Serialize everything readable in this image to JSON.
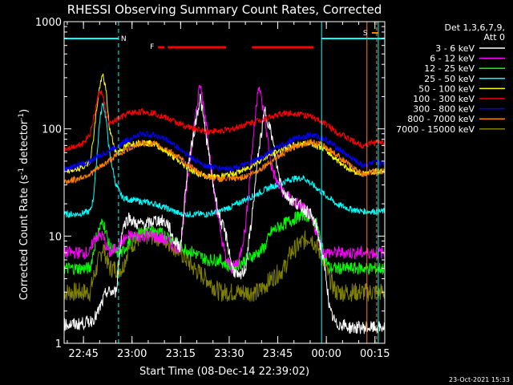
{
  "chart_data": {
    "type": "line",
    "title": "RHESSI Observing Summary Count Rates, Corrected",
    "xlabel": "Start Time (08-Dec-14 22:39:02)",
    "ylabel_main": "Corrected Count Rate (s",
    "ylabel_sup1": "-1",
    "ylabel_mid": " detector",
    "ylabel_sup2": "-1",
    "ylabel_end": ")",
    "yscale": "log",
    "ylim": [
      1,
      1000
    ],
    "xlim_minutes_after_start": [
      0,
      99
    ],
    "x_tick_labels": [
      "22:45",
      "23:00",
      "23:15",
      "23:30",
      "23:45",
      "00:00",
      "00:15"
    ],
    "x_tick_minutes": [
      5.97,
      20.97,
      35.97,
      50.97,
      65.97,
      80.97,
      95.97
    ],
    "y_tick_labels": [
      "1",
      "10",
      "100",
      "1000"
    ],
    "y_tick_values": [
      1,
      10,
      100,
      1000
    ],
    "legend_header": "Det 1,3,6,7,9,",
    "legend_header2": "Att 0",
    "legend_placement": "right, outside",
    "series": [
      {
        "name": "3 - 6 keV",
        "color": "#ffffff",
        "x": [
          0,
          4,
          8,
          10,
          12,
          13,
          14,
          15,
          16,
          18,
          20,
          22,
          24,
          26,
          28,
          30,
          32,
          34,
          36,
          38,
          40,
          42,
          44,
          46,
          48,
          50,
          52,
          54,
          56,
          58,
          60,
          62,
          64,
          66,
          68,
          70,
          72,
          74,
          76,
          78,
          80,
          81,
          82,
          84,
          86,
          88,
          90,
          92,
          94,
          96,
          99
        ],
        "y": [
          1.5,
          1.5,
          1.6,
          1.8,
          2.5,
          3,
          3,
          3,
          3,
          12,
          15,
          13,
          13,
          13,
          14,
          14,
          13,
          9,
          8,
          40,
          90,
          200,
          80,
          30,
          15,
          10,
          5,
          4,
          5,
          15,
          60,
          150,
          90,
          40,
          25,
          22,
          20,
          18,
          16,
          12,
          6,
          4,
          2,
          1.5,
          1.5,
          1.4,
          1.4,
          1.4,
          1.4,
          1.4,
          1.4
        ]
      },
      {
        "name": "6 - 12 keV",
        "color": "#ff00ff",
        "x": [
          0,
          4,
          8,
          9,
          10,
          12,
          13,
          14,
          15,
          16,
          18,
          20,
          24,
          28,
          32,
          34,
          36,
          38,
          40,
          42,
          44,
          46,
          48,
          50,
          52,
          54,
          56,
          58,
          60,
          62,
          64,
          66,
          68,
          70,
          72,
          74,
          76,
          78,
          80,
          82,
          84,
          86,
          88,
          90,
          92,
          94,
          96,
          99
        ],
        "y": [
          7,
          7,
          7,
          9,
          10,
          10,
          8,
          7,
          7,
          8,
          9,
          10,
          10,
          10,
          9,
          8,
          8,
          30,
          100,
          260,
          110,
          30,
          12,
          6,
          5,
          6,
          12,
          60,
          270,
          120,
          45,
          30,
          25,
          22,
          20,
          18,
          15,
          11,
          7,
          7,
          7,
          7,
          7,
          7,
          7,
          7,
          7,
          7
        ]
      },
      {
        "name": "12 - 25 keV",
        "color": "#00ff00",
        "x": [
          0,
          4,
          8,
          9,
          10,
          12,
          14,
          16,
          18,
          20,
          24,
          28,
          32,
          36,
          40,
          44,
          48,
          52,
          56,
          60,
          62,
          64,
          66,
          68,
          70,
          72,
          74,
          76,
          78,
          80,
          82,
          84,
          88,
          92,
          96,
          99
        ],
        "y": [
          5,
          5,
          5,
          7,
          10,
          14,
          8,
          7,
          7,
          9,
          11,
          11,
          10,
          8,
          7,
          6,
          6,
          5,
          6,
          7,
          8,
          11,
          12,
          13,
          14,
          15,
          16,
          15,
          13,
          7,
          5,
          5,
          5,
          5,
          5,
          5
        ]
      },
      {
        "name": "25 - 50 keV",
        "color": "#00ffff",
        "x": [
          0,
          4,
          8,
          9,
          10,
          11,
          12,
          13,
          14,
          16,
          18,
          20,
          24,
          28,
          32,
          36,
          40,
          44,
          48,
          52,
          56,
          60,
          64,
          66,
          70,
          74,
          78,
          80,
          84,
          88,
          92,
          96,
          99
        ],
        "y": [
          16,
          16,
          17,
          22,
          50,
          120,
          180,
          120,
          60,
          30,
          23,
          22,
          21,
          20,
          18,
          16,
          16,
          16,
          17,
          19,
          22,
          25,
          29,
          30,
          34,
          35,
          28,
          25,
          20,
          18,
          17,
          17,
          17
        ]
      },
      {
        "name": "50 - 100 keV",
        "color": "#ffff00",
        "x": [
          0,
          4,
          6,
          8,
          9,
          10,
          11,
          12,
          13,
          14,
          16,
          18,
          20,
          24,
          28,
          32,
          36,
          40,
          44,
          48,
          52,
          56,
          60,
          64,
          68,
          72,
          76,
          80,
          84,
          88,
          92,
          96,
          99
        ],
        "y": [
          40,
          42,
          44,
          50,
          80,
          150,
          250,
          320,
          220,
          100,
          60,
          65,
          72,
          75,
          72,
          60,
          48,
          40,
          36,
          36,
          38,
          42,
          50,
          58,
          66,
          72,
          74,
          66,
          52,
          42,
          38,
          40,
          40
        ]
      },
      {
        "name": "100 - 300 keV",
        "color": "#ff0000",
        "x": [
          0,
          4,
          6,
          8,
          9,
          10,
          11,
          12,
          13,
          14,
          16,
          18,
          20,
          24,
          28,
          32,
          36,
          40,
          44,
          48,
          52,
          56,
          60,
          64,
          68,
          72,
          76,
          80,
          84,
          88,
          92,
          96,
          99
        ],
        "y": [
          65,
          70,
          75,
          90,
          120,
          170,
          230,
          200,
          140,
          110,
          120,
          130,
          140,
          145,
          140,
          125,
          110,
          100,
          95,
          95,
          100,
          110,
          120,
          130,
          140,
          140,
          130,
          115,
          95,
          80,
          70,
          75,
          75
        ]
      },
      {
        "name": "300 - 800 keV",
        "color": "#0000ff",
        "x": [
          0,
          4,
          8,
          12,
          16,
          20,
          24,
          28,
          32,
          36,
          40,
          44,
          48,
          52,
          56,
          60,
          64,
          68,
          72,
          76,
          80,
          84,
          88,
          92,
          96,
          99
        ],
        "y": [
          42,
          45,
          50,
          58,
          68,
          80,
          90,
          88,
          78,
          64,
          52,
          45,
          43,
          43,
          46,
          52,
          62,
          72,
          82,
          88,
          82,
          68,
          55,
          46,
          48,
          48
        ]
      },
      {
        "name": "800 - 7000 keV",
        "color": "#ff8000",
        "x": [
          0,
          4,
          8,
          12,
          16,
          20,
          24,
          28,
          32,
          36,
          40,
          44,
          48,
          52,
          56,
          60,
          64,
          68,
          72,
          76,
          80,
          84,
          88,
          92,
          96,
          99
        ],
        "y": [
          32,
          34,
          38,
          46,
          56,
          66,
          74,
          72,
          64,
          52,
          42,
          36,
          34,
          34,
          36,
          41,
          50,
          60,
          70,
          76,
          70,
          58,
          46,
          38,
          40,
          40
        ]
      },
      {
        "name": "7000 - 15000 keV",
        "color": "#808000",
        "x": [
          0,
          4,
          8,
          9,
          10,
          12,
          14,
          16,
          18,
          20,
          24,
          28,
          32,
          36,
          40,
          44,
          48,
          52,
          56,
          60,
          64,
          68,
          70,
          72,
          74,
          76,
          78,
          80,
          82,
          84,
          88,
          92,
          96,
          99
        ],
        "y": [
          3,
          3,
          3,
          4,
          5,
          8,
          5,
          5,
          5,
          8,
          10,
          10,
          9,
          7,
          5,
          4,
          3,
          3,
          3,
          3,
          4,
          5,
          7,
          8,
          9,
          10,
          8,
          6,
          4,
          3,
          3,
          3,
          3,
          3
        ]
      }
    ],
    "annotations": {
      "markers": [
        {
          "label": "N",
          "color": "#00ffff",
          "x_line_minutes": 16.8,
          "x_bar_start": 0,
          "x_bar_end": 16.8
        },
        {
          "label": "F",
          "color": "#ff0000"
        },
        {
          "label": "S",
          "color": "#ff8000"
        }
      ],
      "flare_bars_minutes": [
        [
          29,
          31
        ],
        [
          32,
          50
        ],
        [
          58,
          77
        ]
      ],
      "night_bar_minutes": [
        79.5,
        99
      ],
      "night_lines_minutes": [
        79.5,
        97
      ],
      "saa_lines_minutes": [
        93.5,
        96.5
      ],
      "saa_bar_minutes": [
        95,
        97
      ]
    }
  },
  "footer_date": "23-Oct-2021 15:33"
}
